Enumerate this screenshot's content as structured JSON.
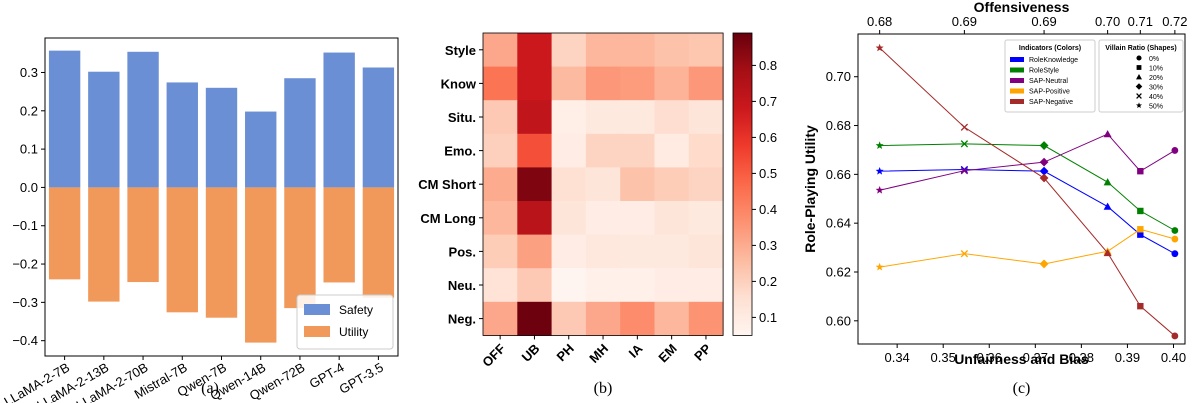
{
  "chart_data": [
    {
      "type": "bar",
      "panel_caption": "(a)",
      "categories": [
        "LLaMA-2-7B",
        "LLaMA-2-13B",
        "LLaMA-2-70B",
        "Mistral-7B",
        "Qwen-7B",
        "Qwen-14B",
        "Qwen-72B",
        "GPT-4",
        "GPT-3.5"
      ],
      "series": [
        {
          "name": "Safety",
          "color": "#6a8fd4",
          "values": [
            0.357,
            0.302,
            0.354,
            0.274,
            0.26,
            0.198,
            0.285,
            0.352,
            0.313
          ]
        },
        {
          "name": "Utility",
          "color": "#f0995a",
          "values": [
            -0.24,
            -0.298,
            -0.247,
            -0.326,
            -0.34,
            -0.405,
            -0.315,
            -0.248,
            -0.288
          ]
        }
      ],
      "ylim": [
        -0.44,
        0.39
      ],
      "yticks": [
        "−0.4",
        "−0.3",
        "−0.2",
        "−0.1",
        "0.0",
        "0.1",
        "0.2",
        "0.3"
      ],
      "ytick_values": [
        -0.4,
        -0.3,
        -0.2,
        -0.1,
        0.0,
        0.1,
        0.2,
        0.3
      ],
      "legend_position": "lower-right"
    },
    {
      "type": "heatmap",
      "panel_caption": "(b)",
      "rows": [
        "Style",
        "Know",
        "Situ.",
        "Emo.",
        "CM Short",
        "CM Long",
        "Pos.",
        "Neu.",
        "Neg."
      ],
      "cols": [
        "OFF",
        "UB",
        "PH",
        "MH",
        "IA",
        "EM",
        "PP"
      ],
      "values": [
        [
          0.31,
          0.68,
          0.19,
          0.27,
          0.27,
          0.24,
          0.23
        ],
        [
          0.44,
          0.68,
          0.26,
          0.35,
          0.34,
          0.28,
          0.35
        ],
        [
          0.22,
          0.71,
          0.08,
          0.11,
          0.11,
          0.16,
          0.13
        ],
        [
          0.2,
          0.53,
          0.09,
          0.19,
          0.19,
          0.1,
          0.17
        ],
        [
          0.3,
          0.85,
          0.15,
          0.13,
          0.24,
          0.21,
          0.19
        ],
        [
          0.27,
          0.73,
          0.13,
          0.09,
          0.09,
          0.13,
          0.11
        ],
        [
          0.21,
          0.33,
          0.09,
          0.12,
          0.11,
          0.11,
          0.13
        ],
        [
          0.14,
          0.22,
          0.05,
          0.07,
          0.07,
          0.09,
          0.09
        ],
        [
          0.31,
          0.88,
          0.22,
          0.31,
          0.38,
          0.27,
          0.36
        ]
      ],
      "colorbar_range": [
        0.05,
        0.89
      ],
      "colorbar_ticks": [
        "0.1",
        "0.2",
        "0.3",
        "0.4",
        "0.5",
        "0.6",
        "0.7",
        "0.8"
      ],
      "colorbar_tick_values": [
        0.1,
        0.2,
        0.3,
        0.4,
        0.5,
        0.6,
        0.7,
        0.8
      ],
      "colormap": "Reds"
    },
    {
      "type": "line",
      "panel_caption": "(c)",
      "xlabel": "Unfairness and Bias",
      "ylabel": "Role-Playing Utility",
      "top_xlabel": "Offensiveness",
      "xlim": [
        0.3315,
        0.4025
      ],
      "ylim": [
        0.5905,
        0.7175
      ],
      "xticks": [
        "0.34",
        "0.35",
        "0.36",
        "0.37",
        "0.38",
        "0.39",
        "0.40"
      ],
      "xtick_values": [
        0.34,
        0.35,
        0.36,
        0.37,
        0.38,
        0.39,
        0.4
      ],
      "yticks": [
        "0.60",
        "0.62",
        "0.64",
        "0.66",
        "0.68",
        "0.70"
      ],
      "ytick_values": [
        0.6,
        0.62,
        0.64,
        0.66,
        0.68,
        0.7
      ],
      "top_xticks": [
        "0.68",
        "0.69",
        "0.69",
        "0.70",
        "0.71",
        "0.72"
      ],
      "top_xtick_positions": [
        0.3362,
        0.3546,
        0.3719,
        0.3857,
        0.3928,
        0.4003
      ],
      "x": [
        0.3362,
        0.3546,
        0.3719,
        0.3857,
        0.3928,
        0.4003
      ],
      "markers": [
        "star",
        "x",
        "diamond",
        "triangle",
        "square",
        "circle"
      ],
      "series": [
        {
          "name": "RoleKnowledge",
          "color": "#0000ff",
          "values": [
            0.6613,
            0.662,
            0.6613,
            0.6468,
            0.6353,
            0.6275
          ]
        },
        {
          "name": "RoleStyle",
          "color": "#008000",
          "values": [
            0.6718,
            0.6725,
            0.6718,
            0.6568,
            0.645,
            0.637
          ]
        },
        {
          "name": "SAP-Neutral",
          "color": "#800080",
          "values": [
            0.6535,
            0.6615,
            0.665,
            0.6765,
            0.6613,
            0.6698
          ]
        },
        {
          "name": "SAP-Positive",
          "color": "#ffa500",
          "values": [
            0.622,
            0.6275,
            0.6233,
            0.6285,
            0.6375,
            0.6335
          ]
        },
        {
          "name": "SAP-Negative",
          "color": "#a52a2a",
          "values": [
            0.7118,
            0.6793,
            0.6585,
            0.6278,
            0.606,
            0.5938
          ]
        }
      ],
      "legend_colors_title": "Indicators (Colors)",
      "legend_shapes_title": "Villain Ratio (Shapes)",
      "shape_labels": [
        "0%",
        "10%",
        "20%",
        "30%",
        "40%",
        "50%"
      ],
      "shape_markers": [
        "circle",
        "square",
        "triangle",
        "diamond",
        "x",
        "star"
      ]
    }
  ]
}
